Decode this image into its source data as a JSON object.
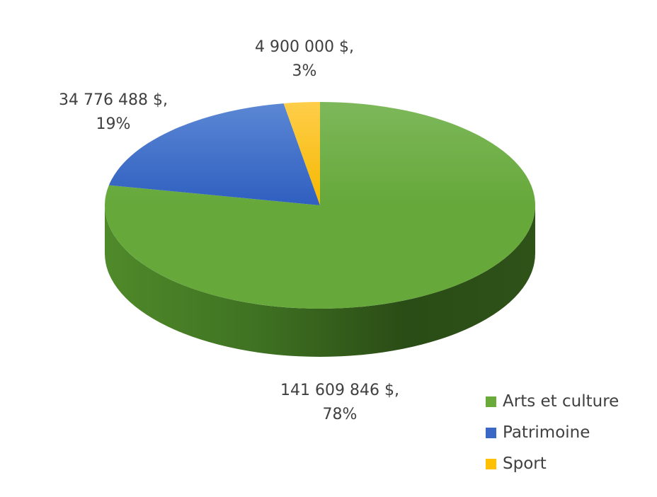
{
  "chart_data": {
    "type": "pie",
    "style": "3d",
    "categories": [
      "Arts et culture",
      "Patrimoine",
      "Sport"
    ],
    "values": [
      141609846,
      34776488,
      4900000
    ],
    "percentages": [
      78,
      19,
      3
    ],
    "data_labels": [
      {
        "value": "141 609 846 $,",
        "percent": "78%"
      },
      {
        "value": "34 776 488 $,",
        "percent": "19%"
      },
      {
        "value": "4 900 000 $,",
        "percent": "3%"
      }
    ],
    "colors": [
      "#6aaa3a",
      "#3a68c4",
      "#ffc000"
    ],
    "legend": {
      "position": "bottom-right",
      "entries": [
        "Arts et culture",
        "Patrimoine",
        "Sport"
      ]
    }
  }
}
